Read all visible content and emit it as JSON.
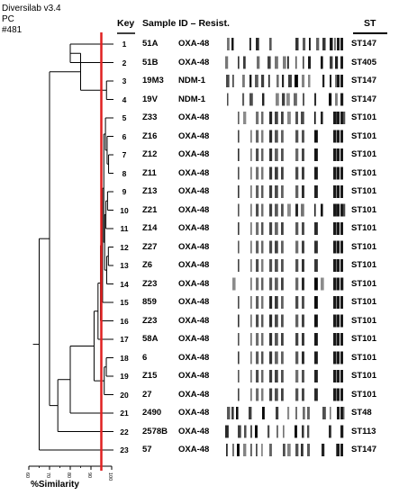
{
  "header": {
    "software": "Diversilab v3.4",
    "method": "PC",
    "run": "#481"
  },
  "columns": {
    "key": "Key",
    "sample": "Sample ID – Resist.",
    "st": "ST"
  },
  "axis": {
    "label": "%Similarity",
    "ticks": [
      "60",
      "70",
      "80",
      "90",
      "100"
    ],
    "min": 60,
    "max": 100,
    "cutoff": 95
  },
  "rows": [
    {
      "key": "1",
      "sample": "51A",
      "resist": "OXA-48",
      "st": "ST147"
    },
    {
      "key": "2",
      "sample": "51B",
      "resist": "OXA-48",
      "st": "ST405"
    },
    {
      "key": "3",
      "sample": "19M3",
      "resist": "NDM-1",
      "st": "ST147"
    },
    {
      "key": "4",
      "sample": "19V",
      "resist": "NDM-1",
      "st": "ST147"
    },
    {
      "key": "5",
      "sample": "Z33",
      "resist": "OXA-48",
      "st": "ST101"
    },
    {
      "key": "6",
      "sample": "Z16",
      "resist": "OXA-48",
      "st": "ST101"
    },
    {
      "key": "7",
      "sample": "Z12",
      "resist": "OXA-48",
      "st": "ST101"
    },
    {
      "key": "8",
      "sample": "Z11",
      "resist": "OXA-48",
      "st": "ST101"
    },
    {
      "key": "9",
      "sample": "Z13",
      "resist": "OXA-48",
      "st": "ST101"
    },
    {
      "key": "10",
      "sample": "Z21",
      "resist": "OXA-48",
      "st": "ST101"
    },
    {
      "key": "11",
      "sample": "Z14",
      "resist": "OXA-48",
      "st": "ST101"
    },
    {
      "key": "12",
      "sample": "Z27",
      "resist": "OXA-48",
      "st": "ST101"
    },
    {
      "key": "13",
      "sample": "Z6",
      "resist": "OXA-48",
      "st": "ST101"
    },
    {
      "key": "14",
      "sample": "Z23",
      "resist": "OXA-48",
      "st": "ST101"
    },
    {
      "key": "15",
      "sample": "859",
      "resist": "OXA-48",
      "st": "ST101"
    },
    {
      "key": "16",
      "sample": "Z23",
      "resist": "OXA-48",
      "st": "ST101"
    },
    {
      "key": "17",
      "sample": "58A",
      "resist": "OXA-48",
      "st": "ST101"
    },
    {
      "key": "18",
      "sample": "6",
      "resist": "OXA-48",
      "st": "ST101"
    },
    {
      "key": "19",
      "sample": "Z15",
      "resist": "OXA-48",
      "st": "ST101"
    },
    {
      "key": "20",
      "sample": "27",
      "resist": "OXA-48",
      "st": "ST101"
    },
    {
      "key": "21",
      "sample": "2490",
      "resist": "OXA-48",
      "st": "ST48"
    },
    {
      "key": "22",
      "sample": "2578B",
      "resist": "OXA-48",
      "st": "ST113"
    },
    {
      "key": "23",
      "sample": "57",
      "resist": "OXA-48",
      "st": "ST147"
    }
  ],
  "colors": {
    "cutoff_line": "#e02020",
    "lines": "#000000"
  }
}
